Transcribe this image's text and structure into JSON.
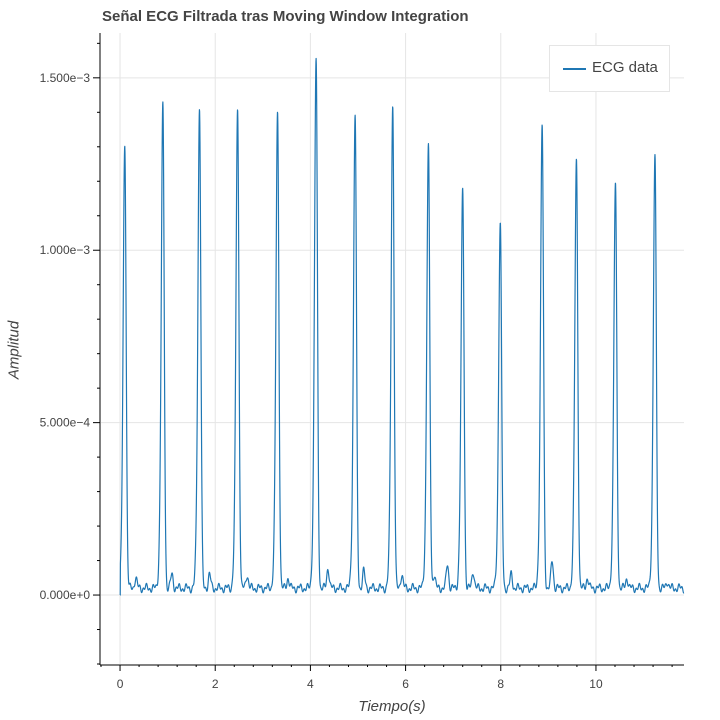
{
  "chart_data": {
    "type": "line",
    "title": "Señal ECG Filtrada tras Moving Window Integration",
    "xlabel": "Tiempo(s)",
    "ylabel": "Amplitud",
    "xlim": [
      -0.4,
      11.85
    ],
    "ylim": [
      -0.0002,
      0.00163
    ],
    "x_ticks": [
      0,
      2,
      4,
      6,
      8,
      10
    ],
    "x_tick_labels": [
      "0",
      "2",
      "4",
      "6",
      "8",
      "10"
    ],
    "y_ticks": [
      0,
      0.0005,
      0.001,
      0.0015
    ],
    "y_tick_labels": [
      "0.000e+0",
      "5.000e−4",
      "1.000e−3",
      "1.500e−3"
    ],
    "grid": true,
    "legend": {
      "position": "top-right"
    },
    "series": [
      {
        "name": "ECG data",
        "color": "#1f77b4",
        "baseline": 2e-05,
        "peaks": [
          {
            "t": 0.1,
            "amp": 0.00128
          },
          {
            "t": 0.9,
            "amp": 0.001385
          },
          {
            "t": 1.67,
            "amp": 0.00138
          },
          {
            "t": 2.47,
            "amp": 0.00138
          },
          {
            "t": 3.31,
            "amp": 0.001365
          },
          {
            "t": 4.12,
            "amp": 0.00152
          },
          {
            "t": 4.94,
            "amp": 0.001362
          },
          {
            "t": 5.73,
            "amp": 0.001388
          },
          {
            "t": 6.48,
            "amp": 0.00127
          },
          {
            "t": 7.2,
            "amp": 0.001145
          },
          {
            "t": 7.99,
            "amp": 0.001052
          },
          {
            "t": 8.87,
            "amp": 0.00133
          },
          {
            "t": 9.59,
            "amp": 0.00123
          },
          {
            "t": 10.41,
            "amp": 0.00116
          },
          {
            "t": 11.24,
            "amp": 0.00124
          }
        ],
        "secondary_bumps": [
          {
            "t": 0.33,
            "amp": 3e-05
          },
          {
            "t": 1.09,
            "amp": 4e-05
          },
          {
            "t": 1.88,
            "amp": 4e-05
          },
          {
            "t": 2.67,
            "amp": 4e-05
          },
          {
            "t": 3.53,
            "amp": 3e-05
          },
          {
            "t": 4.37,
            "amp": 6e-05
          },
          {
            "t": 5.12,
            "amp": 5e-05
          },
          {
            "t": 5.92,
            "amp": 4e-05
          },
          {
            "t": 6.6,
            "amp": 4e-05
          },
          {
            "t": 6.88,
            "amp": 7e-05
          },
          {
            "t": 7.42,
            "amp": 5e-05
          },
          {
            "t": 8.22,
            "amp": 4e-05
          },
          {
            "t": 9.08,
            "amp": 8e-05
          },
          {
            "t": 9.82,
            "amp": 3e-05
          },
          {
            "t": 10.65,
            "amp": 3e-05
          },
          {
            "t": 11.5,
            "amp": 2e-05
          }
        ]
      }
    ]
  }
}
